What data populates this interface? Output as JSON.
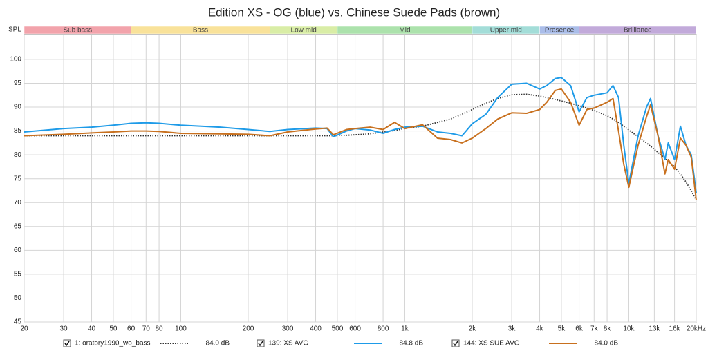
{
  "chart_data": {
    "type": "line",
    "title": "Edition XS - OG (blue) vs. Chinese Suede Pads (brown)",
    "y_label": "SPL",
    "log_x": true,
    "xlim": [
      20,
      20000
    ],
    "ylim": [
      45,
      105.2
    ],
    "xticks": [
      20,
      30,
      40,
      50,
      60,
      70,
      80,
      100,
      200,
      300,
      400,
      500,
      600,
      800,
      {
        "value": 1000,
        "label": "1k"
      },
      {
        "value": 2000,
        "label": "2k"
      },
      {
        "value": 3000,
        "label": "3k"
      },
      {
        "value": 4000,
        "label": "4k"
      },
      {
        "value": 5000,
        "label": "5k"
      },
      {
        "value": 6000,
        "label": "6k"
      },
      {
        "value": 7000,
        "label": "7k"
      },
      {
        "value": 8000,
        "label": "8k"
      },
      {
        "value": 10000,
        "label": "10k"
      },
      {
        "value": 13000,
        "label": "13k"
      },
      {
        "value": 16000,
        "label": "16k"
      },
      {
        "value": 20000,
        "label": "20kHz"
      }
    ],
    "yticks": [
      45,
      50,
      55,
      60,
      65,
      70,
      75,
      80,
      85,
      90,
      95,
      100
    ],
    "grid": true,
    "bands": [
      {
        "name": "Sub bass",
        "from": 20,
        "to": 60,
        "color": "#f2a3ab"
      },
      {
        "name": "Bass",
        "from": 60,
        "to": 250,
        "color": "#f9e29a"
      },
      {
        "name": "Low mid",
        "from": 250,
        "to": 500,
        "color": "#d9eda6"
      },
      {
        "name": "Mid",
        "from": 500,
        "to": 2000,
        "color": "#ace2ac"
      },
      {
        "name": "Upper mid",
        "from": 2000,
        "to": 4000,
        "color": "#a3ddd8"
      },
      {
        "name": "Presence",
        "from": 4000,
        "to": 6000,
        "color": "#aabde9"
      },
      {
        "name": "Brilliance",
        "from": 6000,
        "to": 20000,
        "color": "#c2aada"
      }
    ],
    "x": [
      20,
      30,
      40,
      50,
      60,
      70,
      80,
      100,
      150,
      200,
      250,
      300,
      400,
      450,
      480,
      550,
      600,
      700,
      800,
      900,
      1000,
      1200,
      1400,
      1600,
      1800,
      2000,
      2300,
      2600,
      3000,
      3500,
      4000,
      4300,
      4700,
      5000,
      5500,
      6000,
      6500,
      7000,
      8000,
      8500,
      9000,
      9500,
      10000,
      11000,
      12000,
      12500,
      13500,
      14500,
      15000,
      16000,
      17000,
      18000,
      19000,
      20000
    ],
    "series": [
      {
        "name": "1: oratory1990_wo_bass",
        "color": "#333333",
        "dotted": true,
        "legend_value": "84.0 dB",
        "values": [
          84,
          84,
          84,
          84,
          84,
          84,
          84,
          84,
          84,
          84,
          84,
          84,
          84,
          84,
          84,
          84.1,
          84.2,
          84.4,
          84.8,
          85.1,
          85.5,
          86,
          86.8,
          87.5,
          88.5,
          89.5,
          90.8,
          91.8,
          92.6,
          92.7,
          92.3,
          92,
          91.6,
          91.3,
          90.8,
          90.3,
          89.8,
          89.3,
          88.2,
          87.5,
          86.8,
          86,
          85.2,
          83.8,
          82.5,
          81.8,
          80.5,
          79.3,
          78.6,
          77.5,
          76,
          74.3,
          72.5,
          70.5
        ]
      },
      {
        "name": "139: XS AVG",
        "color": "#1e9be8",
        "dotted": false,
        "legend_value": "84.8 dB",
        "values": [
          84.8,
          85.5,
          85.8,
          86.2,
          86.6,
          86.7,
          86.6,
          86.2,
          85.8,
          85.3,
          84.9,
          85.3,
          85.6,
          85.5,
          83.8,
          85,
          85.5,
          85.2,
          84.5,
          85.3,
          85.8,
          86,
          84.8,
          84.5,
          84,
          86.5,
          88.5,
          92,
          94.8,
          95,
          93.8,
          94.5,
          96,
          96.2,
          94.5,
          89,
          92,
          92.5,
          93,
          94.5,
          92,
          82,
          74,
          84,
          90,
          91.8,
          84,
          79,
          82.5,
          79,
          86,
          82,
          80,
          72
        ]
      },
      {
        "name": "144: XS SUE AVG",
        "color": "#c8701e",
        "dotted": false,
        "legend_value": "84.0 dB",
        "values": [
          84,
          84.3,
          84.6,
          84.8,
          85,
          85,
          84.9,
          84.5,
          84.4,
          84.3,
          84,
          84.8,
          85.4,
          85.6,
          84.2,
          85.3,
          85.5,
          85.8,
          85.3,
          86.8,
          85.5,
          86.3,
          83.5,
          83.2,
          82.5,
          83.5,
          85.5,
          87.5,
          88.8,
          88.7,
          89.5,
          91,
          93.5,
          93.8,
          91,
          86.2,
          89.5,
          89.8,
          91,
          91.8,
          85,
          78,
          73.2,
          82,
          88,
          90.5,
          84,
          76,
          79,
          77,
          83.5,
          82,
          79.5,
          70.5
        ]
      }
    ]
  }
}
